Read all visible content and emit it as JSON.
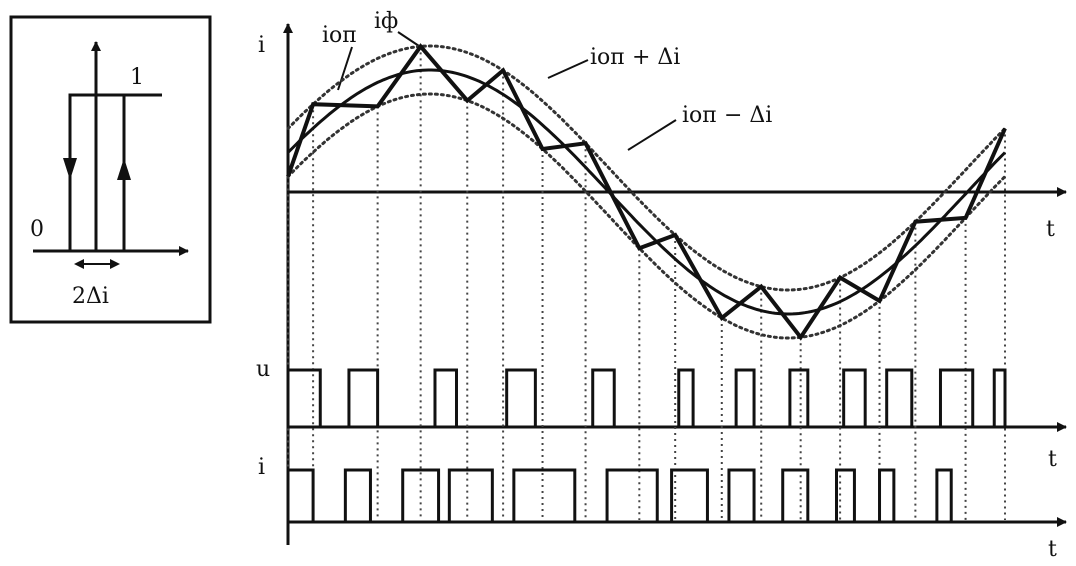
{
  "hysteresis_inset": {
    "upper_level_label": "1",
    "lower_level_label": "0",
    "band_label": "2Δi"
  },
  "current_plot": {
    "axis_label": "i",
    "time_label": "t",
    "reference_label": "iоп",
    "phase_current_label": "iф",
    "upper_band_label": "iоп + Δi",
    "lower_band_label": "iоп − Δi"
  },
  "voltage_plot": {
    "axis_label": "u",
    "time_label": "t"
  },
  "switch_current_plot": {
    "axis_label": "i",
    "time_label": "t"
  },
  "chart_data": {
    "type": "diagram",
    "reference": "sine",
    "band": "±Δi",
    "switch_times": [
      0,
      0.035,
      0.125,
      0.185,
      0.25,
      0.3,
      0.355,
      0.415,
      0.49,
      0.54,
      0.605,
      0.66,
      0.715,
      0.77,
      0.825,
      0.875,
      0.945,
      1.0
    ],
    "voltage_high": [
      [
        0,
        0.045
      ],
      [
        0.085,
        0.125
      ],
      [
        0.205,
        0.235
      ],
      [
        0.305,
        0.345
      ],
      [
        0.425,
        0.455
      ],
      [
        0.545,
        0.565
      ],
      [
        0.625,
        0.65
      ],
      [
        0.7,
        0.725
      ],
      [
        0.775,
        0.805
      ],
      [
        0.835,
        0.87
      ],
      [
        0.91,
        0.955
      ],
      [
        0.985,
        1.0
      ]
    ],
    "switch_current_high": [
      [
        0.0,
        0.035
      ],
      [
        0.08,
        0.115
      ],
      [
        0.16,
        0.21
      ],
      [
        0.225,
        0.285
      ],
      [
        0.315,
        0.4
      ],
      [
        0.445,
        0.515
      ],
      [
        0.535,
        0.585
      ],
      [
        0.615,
        0.65
      ],
      [
        0.69,
        0.725
      ],
      [
        0.765,
        0.79
      ],
      [
        0.825,
        0.845
      ],
      [
        0.905,
        0.925
      ]
    ]
  }
}
